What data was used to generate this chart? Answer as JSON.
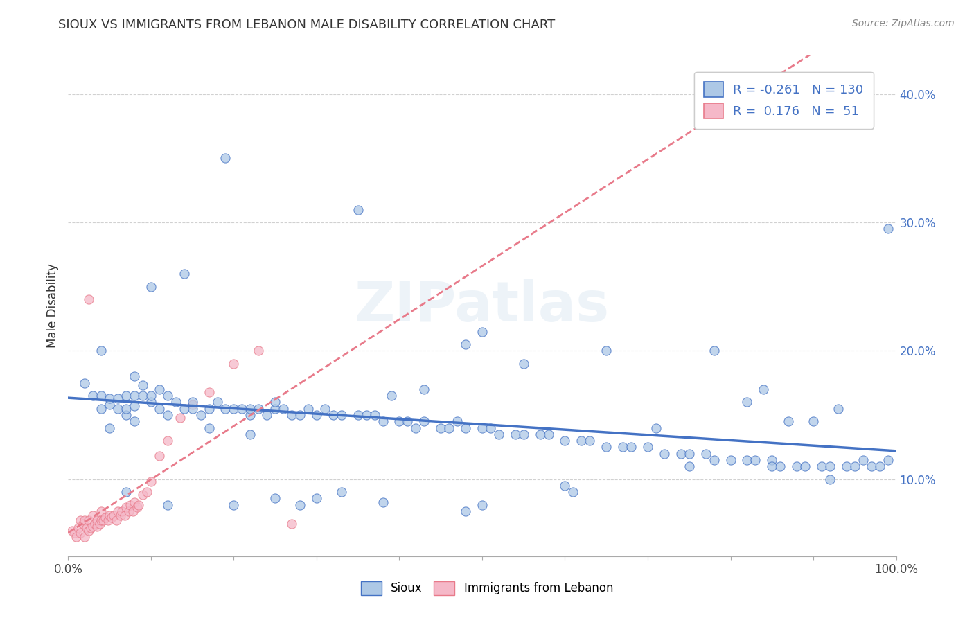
{
  "title": "SIOUX VS IMMIGRANTS FROM LEBANON MALE DISABILITY CORRELATION CHART",
  "source": "Source: ZipAtlas.com",
  "ylabel": "Male Disability",
  "watermark": "ZIPatlas",
  "xlim": [
    0.0,
    1.0
  ],
  "ylim": [
    0.04,
    0.43
  ],
  "xticks": [
    0.0,
    0.1,
    0.2,
    0.3,
    0.4,
    0.5,
    0.6,
    0.7,
    0.8,
    0.9,
    1.0
  ],
  "yticks": [
    0.1,
    0.2,
    0.3,
    0.4
  ],
  "ytick_labels": [
    "10.0%",
    "20.0%",
    "30.0%",
    "40.0%"
  ],
  "xtick_labels": [
    "0.0%",
    "",
    "",
    "",
    "",
    "",
    "",
    "",
    "",
    "",
    "100.0%"
  ],
  "sioux_color": "#adc8e6",
  "lebanon_color": "#f5b8c8",
  "sioux_line_color": "#4472c4",
  "lebanon_line_color": "#e87a8a",
  "legend_r1": "-0.261",
  "legend_n1": "130",
  "legend_r2": " 0.176",
  "legend_n2": " 51",
  "sioux_x": [
    0.02,
    0.03,
    0.04,
    0.04,
    0.05,
    0.05,
    0.05,
    0.06,
    0.06,
    0.07,
    0.07,
    0.07,
    0.08,
    0.08,
    0.08,
    0.09,
    0.09,
    0.1,
    0.1,
    0.11,
    0.11,
    0.12,
    0.12,
    0.13,
    0.14,
    0.15,
    0.15,
    0.16,
    0.17,
    0.18,
    0.19,
    0.2,
    0.21,
    0.22,
    0.22,
    0.23,
    0.24,
    0.25,
    0.25,
    0.26,
    0.27,
    0.28,
    0.29,
    0.3,
    0.31,
    0.32,
    0.33,
    0.35,
    0.36,
    0.37,
    0.38,
    0.4,
    0.41,
    0.42,
    0.43,
    0.45,
    0.46,
    0.47,
    0.48,
    0.5,
    0.51,
    0.52,
    0.54,
    0.55,
    0.57,
    0.58,
    0.6,
    0.62,
    0.63,
    0.65,
    0.67,
    0.68,
    0.7,
    0.72,
    0.74,
    0.75,
    0.77,
    0.78,
    0.8,
    0.82,
    0.83,
    0.85,
    0.86,
    0.88,
    0.89,
    0.91,
    0.92,
    0.94,
    0.95,
    0.97,
    0.98,
    0.99,
    0.35,
    0.48,
    0.22,
    0.14,
    0.19,
    0.07,
    0.04,
    0.1,
    0.28,
    0.33,
    0.61,
    0.71,
    0.82,
    0.87,
    0.9,
    0.93,
    0.96,
    0.99,
    0.55,
    0.43,
    0.25,
    0.17,
    0.08,
    0.65,
    0.78,
    0.84,
    0.5,
    0.39,
    0.3,
    0.2,
    0.12,
    0.5,
    0.48,
    0.75,
    0.85,
    0.92,
    0.6,
    0.38
  ],
  "sioux_y": [
    0.175,
    0.165,
    0.155,
    0.165,
    0.14,
    0.158,
    0.163,
    0.155,
    0.163,
    0.15,
    0.155,
    0.165,
    0.145,
    0.157,
    0.165,
    0.165,
    0.173,
    0.16,
    0.165,
    0.155,
    0.17,
    0.15,
    0.165,
    0.16,
    0.155,
    0.155,
    0.16,
    0.15,
    0.155,
    0.16,
    0.155,
    0.155,
    0.155,
    0.15,
    0.155,
    0.155,
    0.15,
    0.155,
    0.16,
    0.155,
    0.15,
    0.15,
    0.155,
    0.15,
    0.155,
    0.15,
    0.15,
    0.15,
    0.15,
    0.15,
    0.145,
    0.145,
    0.145,
    0.14,
    0.145,
    0.14,
    0.14,
    0.145,
    0.14,
    0.14,
    0.14,
    0.135,
    0.135,
    0.135,
    0.135,
    0.135,
    0.13,
    0.13,
    0.13,
    0.125,
    0.125,
    0.125,
    0.125,
    0.12,
    0.12,
    0.12,
    0.12,
    0.115,
    0.115,
    0.115,
    0.115,
    0.115,
    0.11,
    0.11,
    0.11,
    0.11,
    0.11,
    0.11,
    0.11,
    0.11,
    0.11,
    0.295,
    0.31,
    0.205,
    0.135,
    0.26,
    0.35,
    0.09,
    0.2,
    0.25,
    0.08,
    0.09,
    0.09,
    0.14,
    0.16,
    0.145,
    0.145,
    0.155,
    0.115,
    0.115,
    0.19,
    0.17,
    0.085,
    0.14,
    0.18,
    0.2,
    0.2,
    0.17,
    0.215,
    0.165,
    0.085,
    0.08,
    0.08,
    0.08,
    0.075,
    0.11,
    0.11,
    0.1,
    0.095,
    0.082
  ],
  "lebanon_x": [
    0.005,
    0.008,
    0.01,
    0.012,
    0.015,
    0.015,
    0.018,
    0.02,
    0.02,
    0.022,
    0.025,
    0.025,
    0.027,
    0.03,
    0.03,
    0.032,
    0.035,
    0.035,
    0.038,
    0.04,
    0.04,
    0.042,
    0.045,
    0.048,
    0.05,
    0.052,
    0.055,
    0.058,
    0.06,
    0.063,
    0.065,
    0.068,
    0.07,
    0.073,
    0.075,
    0.078,
    0.08,
    0.083,
    0.085,
    0.09,
    0.095,
    0.1,
    0.11,
    0.12,
    0.135,
    0.15,
    0.17,
    0.2,
    0.23,
    0.27,
    0.025
  ],
  "lebanon_y": [
    0.06,
    0.058,
    0.055,
    0.062,
    0.058,
    0.068,
    0.065,
    0.055,
    0.068,
    0.062,
    0.06,
    0.068,
    0.062,
    0.063,
    0.072,
    0.065,
    0.063,
    0.068,
    0.065,
    0.068,
    0.075,
    0.068,
    0.07,
    0.068,
    0.072,
    0.07,
    0.072,
    0.068,
    0.075,
    0.072,
    0.075,
    0.072,
    0.078,
    0.075,
    0.08,
    0.075,
    0.082,
    0.078,
    0.08,
    0.088,
    0.09,
    0.098,
    0.118,
    0.13,
    0.148,
    0.158,
    0.168,
    0.19,
    0.2,
    0.065,
    0.24
  ]
}
